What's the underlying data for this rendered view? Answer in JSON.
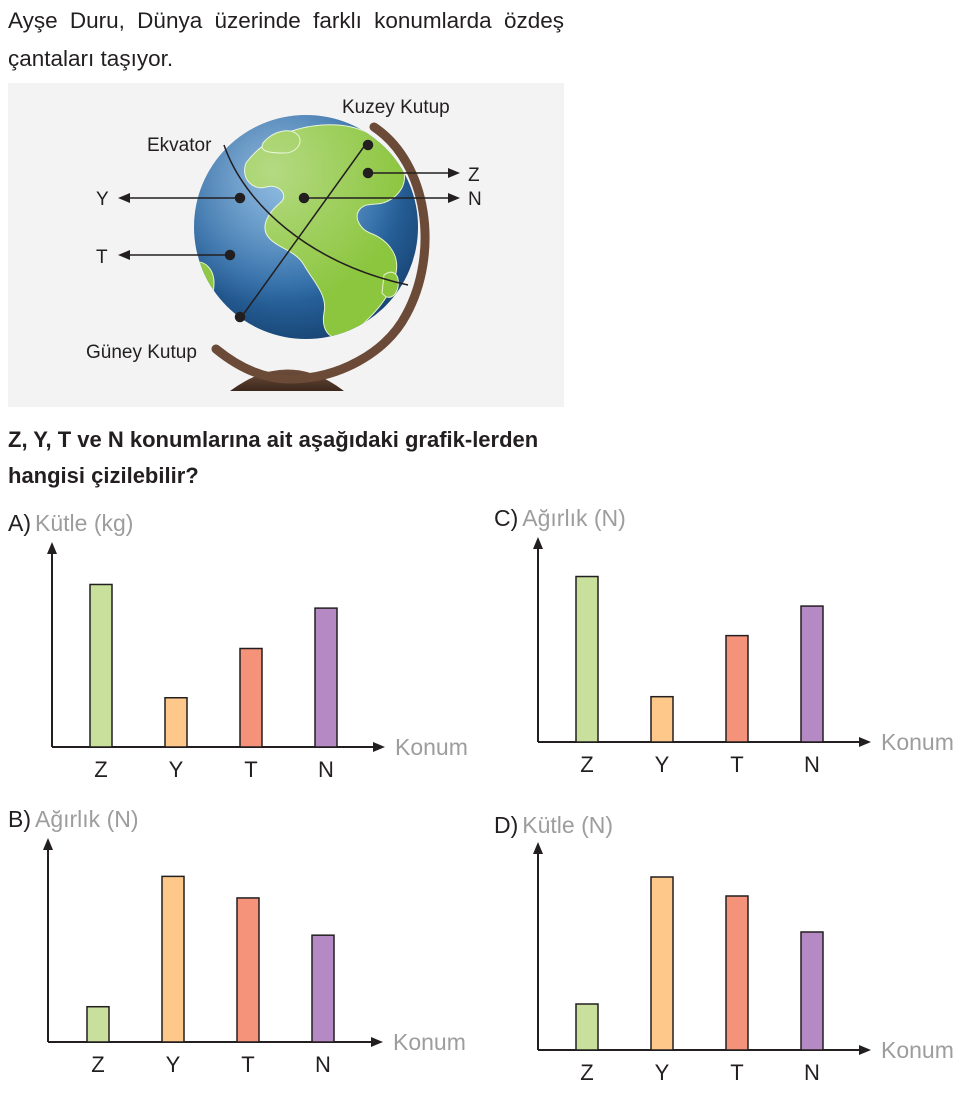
{
  "intro_text": "Ayşe Duru, Dünya üzerinde farklı konumlarda özdeş çantaları taşıyor.",
  "globe": {
    "labels": {
      "north_pole": "Kuzey Kutup",
      "equator": "Ekvator",
      "south_pole": "Güney Kutup",
      "z": "Z",
      "n": "N",
      "y": "Y",
      "t": "T"
    }
  },
  "question": "Z, Y, T ve N konumlarına ait aşağıdaki grafik-lerden hangisi çizilebilir?",
  "colors": {
    "Z": "#c8e09c",
    "Y": "#fdc88a",
    "T": "#f4937a",
    "N": "#b58ac4",
    "axis_label": "#9d9d9d"
  },
  "options": {
    "A": {
      "letter": "A)",
      "ylabel": "Kütle (kg)"
    },
    "B": {
      "letter": "B)",
      "ylabel": "Ağırlık (N)"
    },
    "C": {
      "letter": "C)",
      "ylabel": "Ağırlık (N)"
    },
    "D": {
      "letter": "D)",
      "ylabel": "Kütle (N)"
    }
  },
  "chart_data": [
    {
      "id": "A",
      "type": "bar",
      "categories": [
        "Z",
        "Y",
        "T",
        "N"
      ],
      "values": [
        165,
        50,
        100,
        141
      ],
      "ylabel": "Kütle (kg)",
      "xlabel": "Konum",
      "ylim": [
        0,
        200
      ]
    },
    {
      "id": "B",
      "type": "bar",
      "categories": [
        "Z",
        "Y",
        "T",
        "N"
      ],
      "values": [
        36,
        169,
        147,
        109
      ],
      "ylabel": "Ağırlık (N)",
      "xlabel": "Konum",
      "ylim": [
        0,
        200
      ]
    },
    {
      "id": "C",
      "type": "bar",
      "categories": [
        "Z",
        "Y",
        "T",
        "N"
      ],
      "values": [
        168,
        46,
        108,
        138
      ],
      "ylabel": "Ağırlık (N)",
      "xlabel": "Konum",
      "ylim": [
        0,
        200
      ]
    },
    {
      "id": "D",
      "type": "bar",
      "categories": [
        "Z",
        "Y",
        "T",
        "N"
      ],
      "values": [
        46,
        173,
        154,
        118
      ],
      "ylabel": "Kütle (N)",
      "xlabel": "Konum",
      "ylim": [
        0,
        200
      ]
    }
  ]
}
